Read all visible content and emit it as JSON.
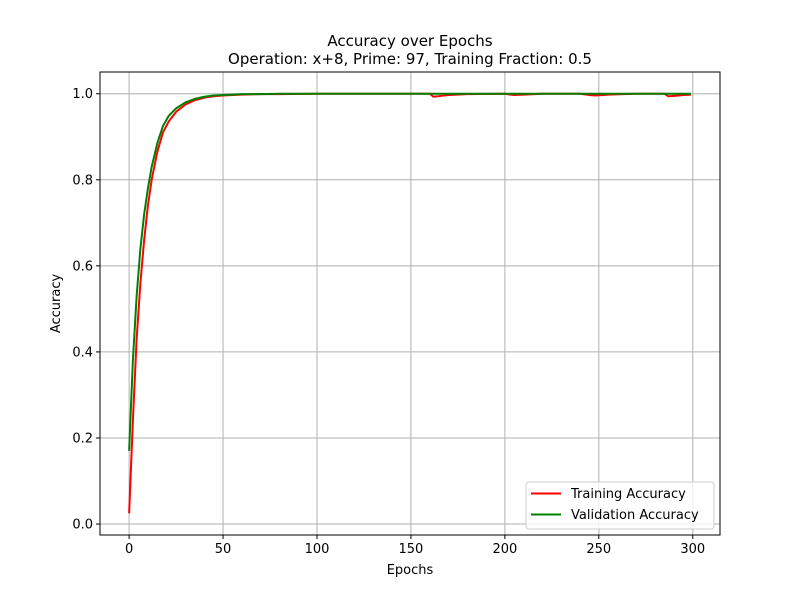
{
  "chart_data": {
    "type": "line",
    "title": "Accuracy over Epochs",
    "subtitle": "Operation: x+8, Prime: 97, Training Fraction: 0.5",
    "xlabel": "Epochs",
    "ylabel": "Accuracy",
    "xlim": [
      -15.5,
      314.5
    ],
    "ylim": [
      -0.0255,
      1.0505
    ],
    "xticks": [
      0,
      50,
      100,
      150,
      200,
      250,
      300
    ],
    "yticks": [
      0.0,
      0.2,
      0.4,
      0.6,
      0.8,
      1.0
    ],
    "xtick_labels": [
      "0",
      "50",
      "100",
      "150",
      "200",
      "250",
      "300"
    ],
    "ytick_labels": [
      "0.0",
      "0.2",
      "0.4",
      "0.6",
      "0.8",
      "1.0"
    ],
    "grid": true,
    "legend_position": "lower-right",
    "series": [
      {
        "name": "Training Accuracy",
        "color": "#ff0000",
        "x": [
          0,
          2,
          4,
          6,
          8,
          10,
          12,
          15,
          18,
          21,
          25,
          30,
          35,
          40,
          45,
          50,
          55,
          60,
          70,
          80,
          100,
          120,
          140,
          160,
          162,
          164,
          170,
          180,
          200,
          203,
          205,
          210,
          220,
          240,
          245,
          248,
          255,
          270,
          285,
          287,
          290,
          295,
          299
        ],
        "y": [
          0.025,
          0.24,
          0.43,
          0.56,
          0.66,
          0.74,
          0.8,
          0.865,
          0.91,
          0.935,
          0.958,
          0.975,
          0.985,
          0.991,
          0.994,
          0.996,
          0.997,
          0.998,
          0.999,
          0.999,
          1.0,
          1.0,
          1.0,
          1.0,
          0.993,
          0.994,
          0.997,
          0.999,
          1.0,
          0.998,
          0.997,
          0.998,
          1.0,
          1.0,
          0.997,
          0.996,
          0.998,
          1.0,
          1.0,
          0.994,
          0.995,
          0.997,
          0.998
        ]
      },
      {
        "name": "Validation Accuracy",
        "color": "#008000",
        "x": [
          0,
          2,
          4,
          6,
          8,
          10,
          12,
          15,
          18,
          21,
          25,
          30,
          35,
          40,
          45,
          50,
          55,
          60,
          70,
          80,
          100,
          150,
          200,
          250,
          299
        ],
        "y": [
          0.17,
          0.38,
          0.53,
          0.64,
          0.72,
          0.78,
          0.83,
          0.885,
          0.925,
          0.948,
          0.966,
          0.98,
          0.988,
          0.993,
          0.996,
          0.997,
          0.998,
          0.999,
          0.999,
          1.0,
          1.0,
          1.0,
          1.0,
          1.0,
          1.0
        ]
      }
    ]
  }
}
